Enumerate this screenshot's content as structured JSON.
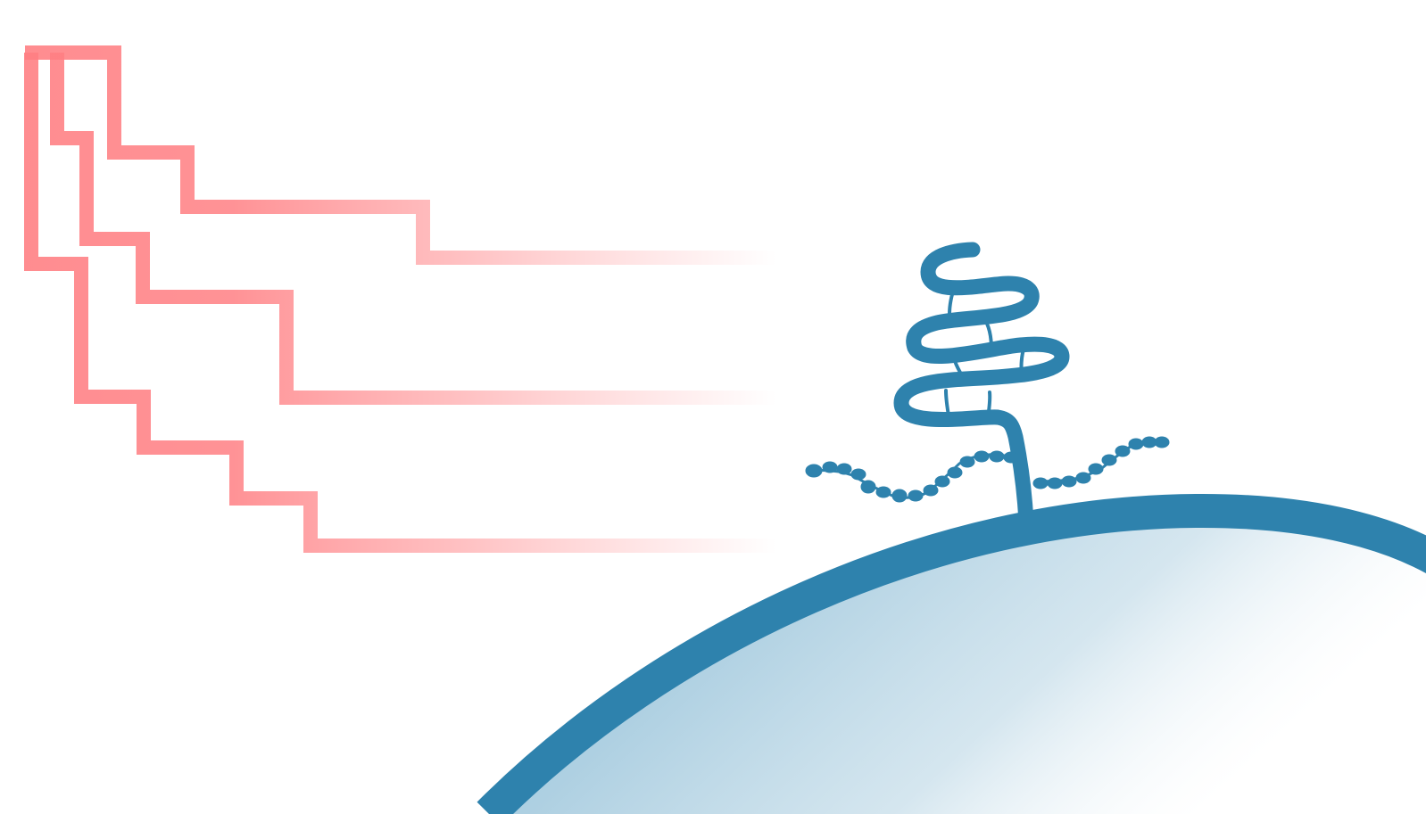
{
  "figure": {
    "description_visible_text": "",
    "elements": {
      "step_traces": {
        "count": 3,
        "color": "#ff7f83"
      },
      "receptor": {
        "color": "#2e82ad"
      },
      "glycan_chains": {
        "count": 2,
        "color": "#2e82ad"
      },
      "cell": {
        "membrane_color": "#2e82ad",
        "interior_color": "#a9cde0"
      }
    }
  }
}
